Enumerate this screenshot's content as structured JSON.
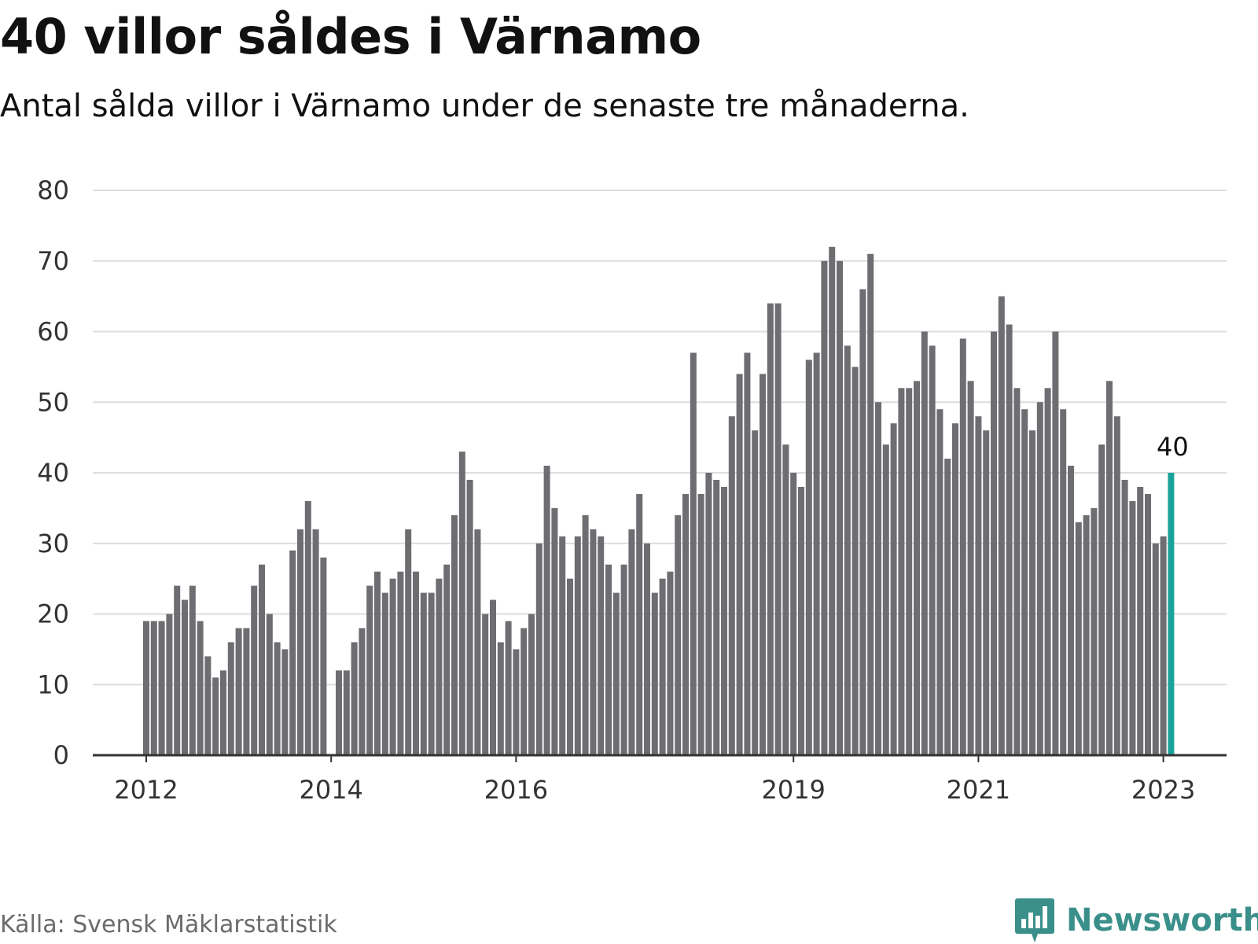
{
  "title": "40 villor såldes i Värnamo",
  "subtitle": "Antal sålda villor i Värnamo under de senaste tre månaderna.",
  "source": "Källa: Svensk Mäklarstatistik",
  "brand": {
    "name": "Newsworthy",
    "logo_icon": "newsworthy-bar-chart-icon"
  },
  "colors": {
    "bar": "#6d6d72",
    "highlight": "#1aa39a",
    "grid": "#dddddd",
    "axis": "#333333",
    "brand": "#3a8f8a"
  },
  "chart_data": {
    "type": "bar",
    "title": "40 villor såldes i Värnamo",
    "xlabel": "",
    "ylabel": "",
    "ylim": [
      0,
      80
    ],
    "yticks": [
      0,
      10,
      20,
      30,
      40,
      50,
      60,
      70,
      80
    ],
    "xtick_labels": [
      {
        "label": "2012",
        "index": 0
      },
      {
        "label": "2014",
        "index": 24
      },
      {
        "label": "2016",
        "index": 48
      },
      {
        "label": "2019",
        "index": 84
      },
      {
        "label": "2021",
        "index": 108
      },
      {
        "label": "2023",
        "index": 132
      }
    ],
    "highlight_index": 133,
    "highlight_label": "40",
    "values": [
      19,
      19,
      19,
      20,
      24,
      22,
      24,
      19,
      14,
      11,
      12,
      16,
      18,
      18,
      24,
      27,
      20,
      16,
      15,
      29,
      32,
      36,
      32,
      28,
      null,
      12,
      12,
      16,
      18,
      24,
      26,
      23,
      25,
      26,
      32,
      26,
      23,
      23,
      25,
      27,
      34,
      43,
      39,
      32,
      20,
      22,
      16,
      19,
      15,
      18,
      20,
      30,
      41,
      35,
      31,
      25,
      31,
      34,
      32,
      31,
      27,
      23,
      27,
      32,
      37,
      30,
      23,
      25,
      26,
      34,
      37,
      57,
      37,
      40,
      39,
      38,
      48,
      54,
      57,
      46,
      54,
      64,
      64,
      44,
      40,
      38,
      56,
      57,
      70,
      72,
      70,
      58,
      55,
      66,
      71,
      50,
      44,
      47,
      52,
      52,
      53,
      60,
      58,
      49,
      42,
      47,
      59,
      53,
      48,
      46,
      60,
      65,
      61,
      52,
      49,
      46,
      50,
      52,
      60,
      49,
      41,
      33,
      34,
      35,
      44,
      53,
      48,
      39,
      36,
      38,
      37,
      30,
      31,
      40
    ]
  }
}
